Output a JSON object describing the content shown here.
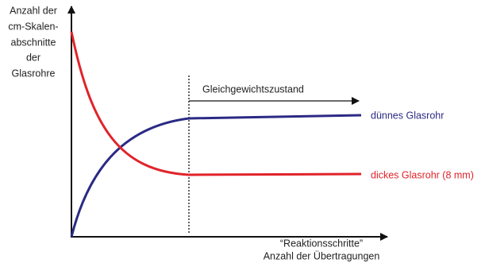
{
  "y_axis_label": [
    "Anzahl der",
    "cm-Skalen-",
    "abschnitte",
    "der",
    "Glasrohre"
  ],
  "x_axis_label": [
    "“Reaktionsschritte”",
    "Anzahl der Übertragungen"
  ],
  "annotation": "Gleichgewichtszustand",
  "curves": [
    {
      "label": "dünnes Glasrohr",
      "color": "#2b2a85"
    },
    {
      "label": "dickes Glasrohr (8 mm)",
      "color": "#e1232b"
    }
  ]
}
